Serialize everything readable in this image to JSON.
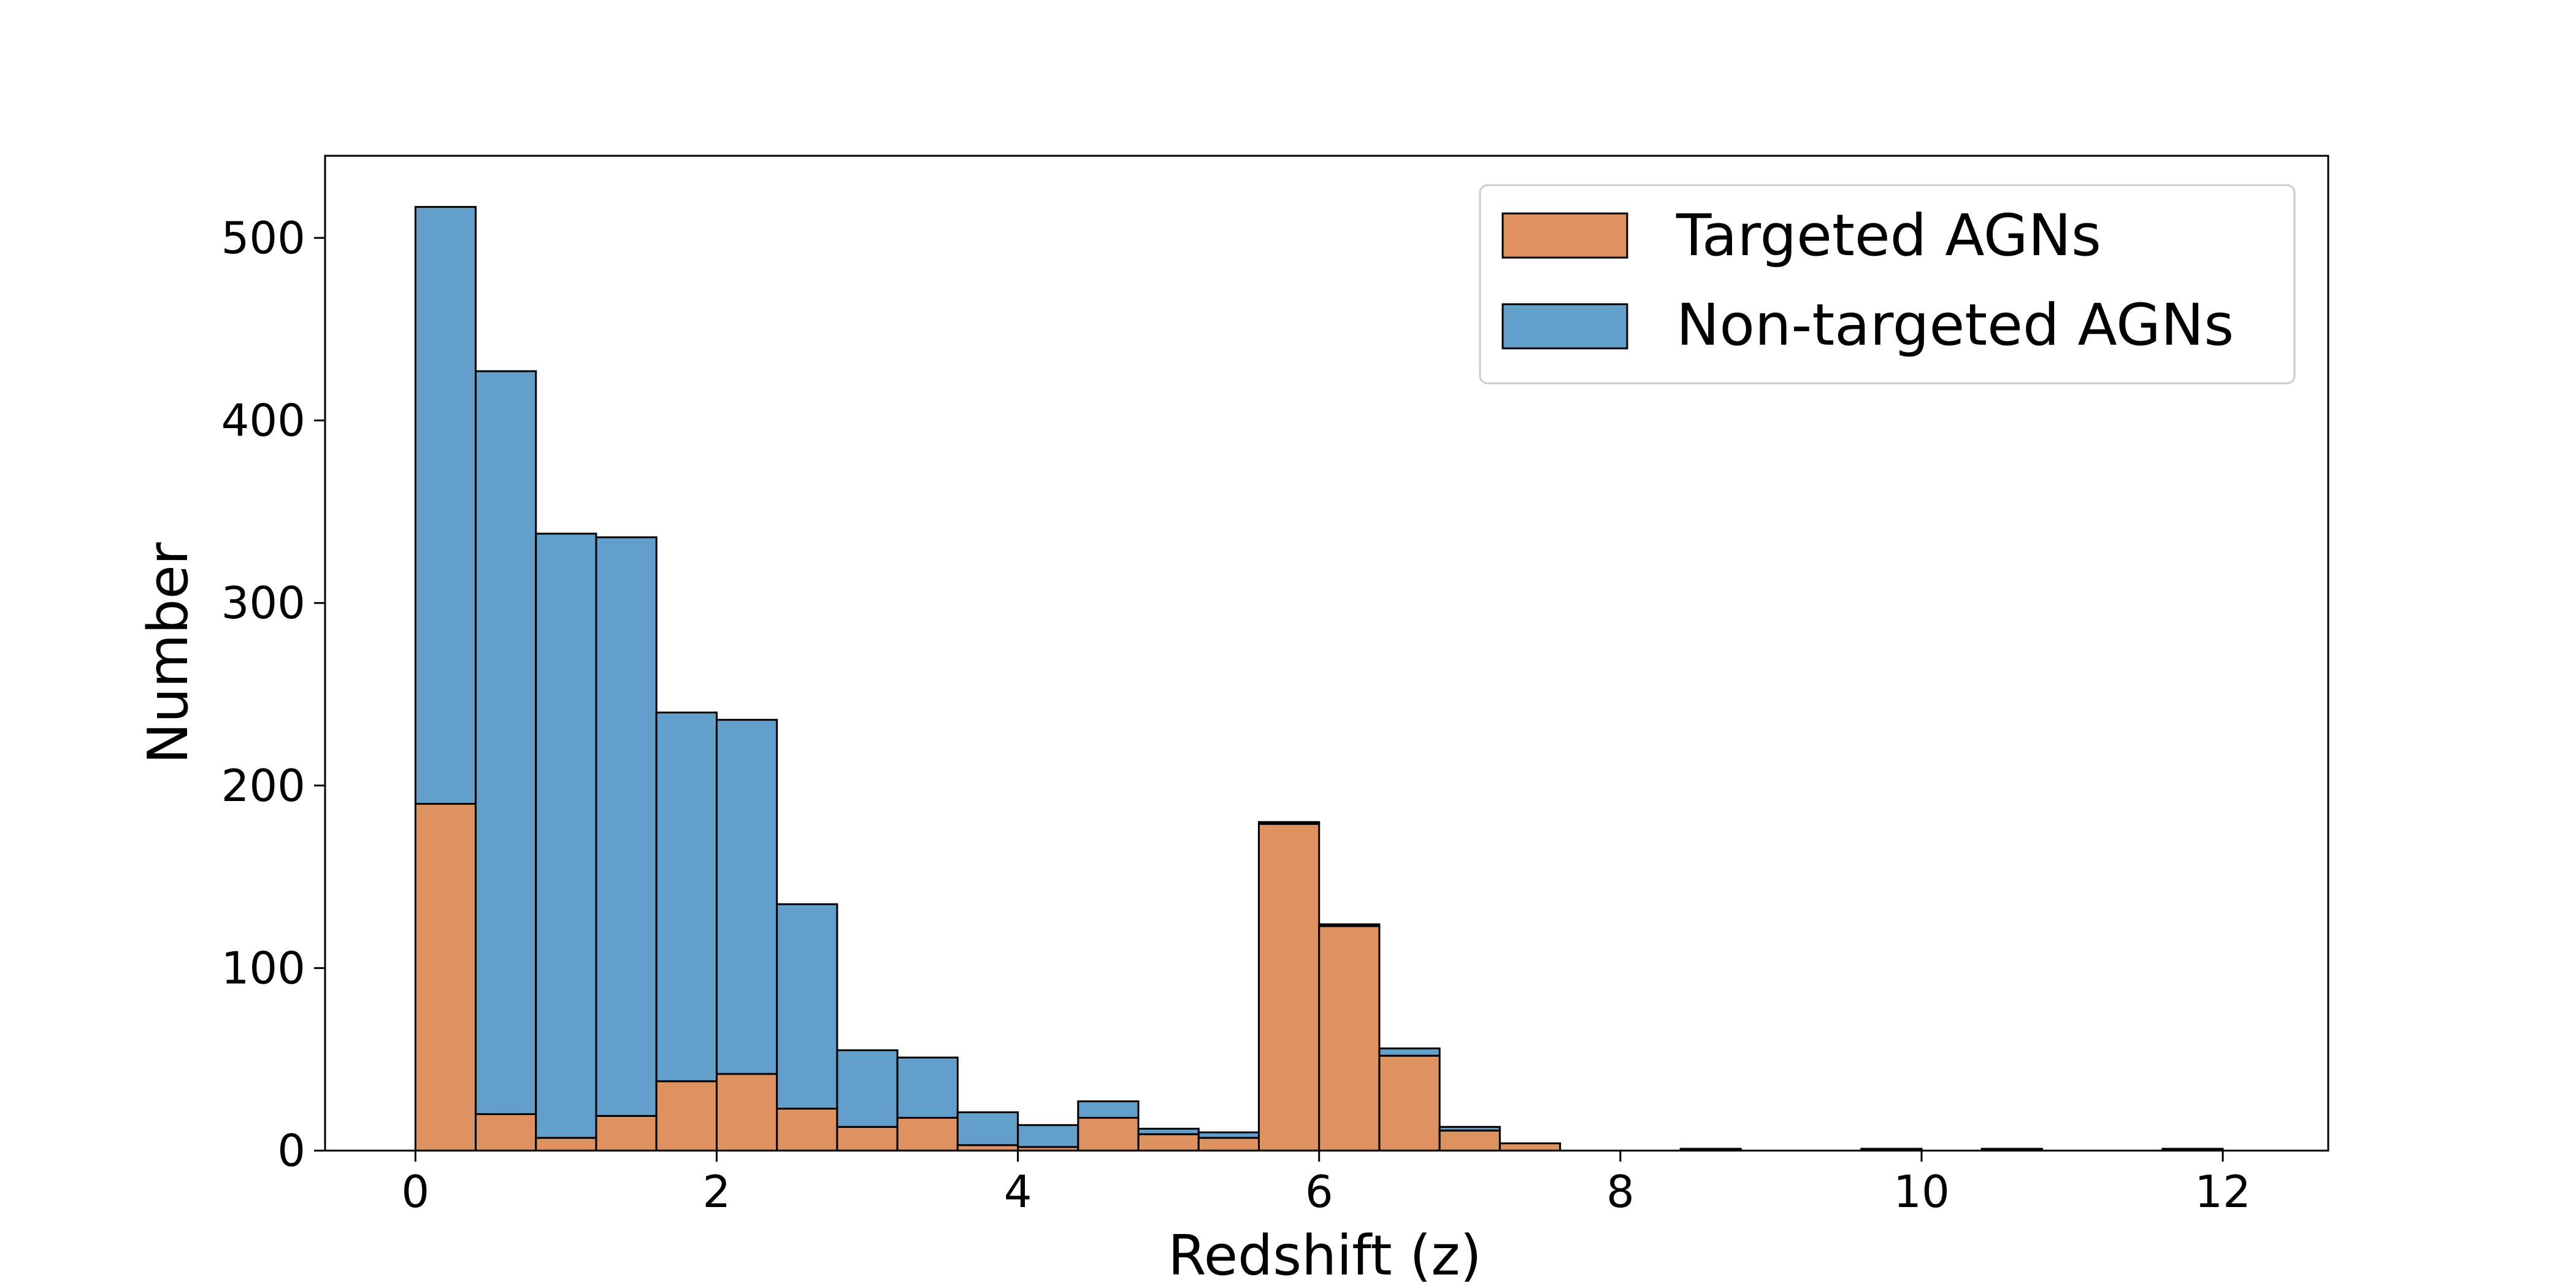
{
  "chart_data": {
    "type": "bar",
    "stacked": true,
    "xlabel": "Redshift (z)",
    "ylabel": "Number",
    "xlim": [
      -0.6,
      12.7
    ],
    "ylim": [
      0,
      545
    ],
    "xticks": [
      "0",
      "2",
      "4",
      "6",
      "8",
      "10",
      "12"
    ],
    "yticks": [
      "0",
      "100",
      "200",
      "300",
      "400",
      "500"
    ],
    "bin_edges": [
      0,
      0.4,
      0.8,
      1.2,
      1.6,
      2.0,
      2.4,
      2.8,
      3.2,
      3.6,
      4.0,
      4.4,
      4.8,
      5.2,
      5.6,
      6.0,
      6.4,
      6.8,
      7.2,
      7.6,
      8.0,
      8.4,
      8.8,
      9.2,
      9.6,
      10.0,
      10.4,
      10.8,
      11.2,
      11.6,
      12.0
    ],
    "series": [
      {
        "name": "Targeted AGNs",
        "color": "#dd925f",
        "values": [
          190,
          20,
          7,
          19,
          38,
          42,
          23,
          13,
          18,
          3,
          2,
          18,
          9,
          7,
          179,
          123,
          52,
          11,
          4,
          0,
          0,
          0,
          0,
          0,
          0,
          0,
          0,
          0,
          0,
          0
        ]
      },
      {
        "name": "Non-targeted AGNs",
        "color": "#62a0cb",
        "values": [
          327,
          407,
          331,
          317,
          202,
          194,
          112,
          42,
          33,
          18,
          12,
          9,
          3,
          3,
          1,
          1,
          4,
          2,
          0,
          0,
          0,
          1,
          0,
          0,
          1,
          0,
          1,
          0,
          0,
          1
        ]
      }
    ],
    "legend": {
      "position": "top-right",
      "entries": [
        "Targeted AGNs",
        "Non-targeted AGNs"
      ]
    },
    "grid": false
  }
}
